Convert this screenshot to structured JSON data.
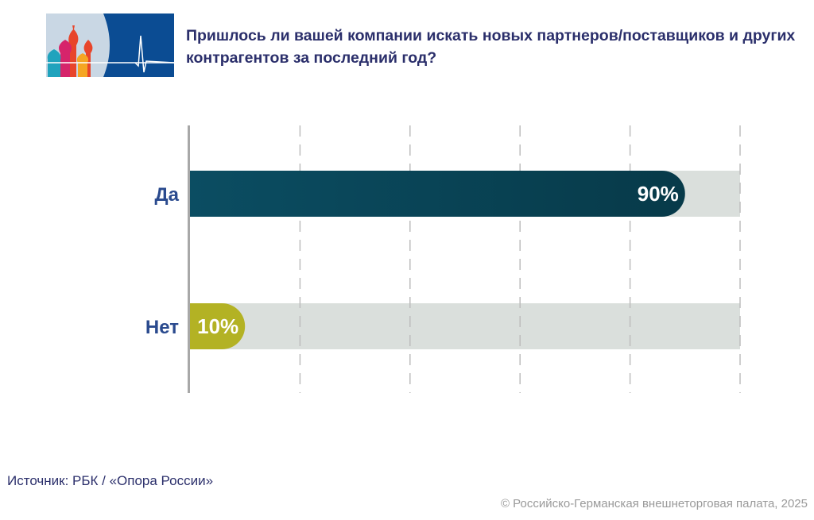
{
  "chart_data": {
    "type": "bar",
    "orientation": "horizontal",
    "title": "Пришлось ли вашей компании искать новых партнеров/поставщиков и других контрагентов за последний год?",
    "categories": [
      "Да",
      "Нет"
    ],
    "values": [
      90,
      10
    ],
    "value_labels": [
      "90%",
      "10%"
    ],
    "xlim": [
      0,
      100
    ],
    "grid": true,
    "grid_step": 20,
    "colors": [
      "#0a4559",
      "#b3b224"
    ],
    "track_color": "#dadfdc"
  },
  "source": "Источник: РБК / «Опора России»",
  "copyright": "© Российско-Германская внешнеторговая палата, 2025"
}
